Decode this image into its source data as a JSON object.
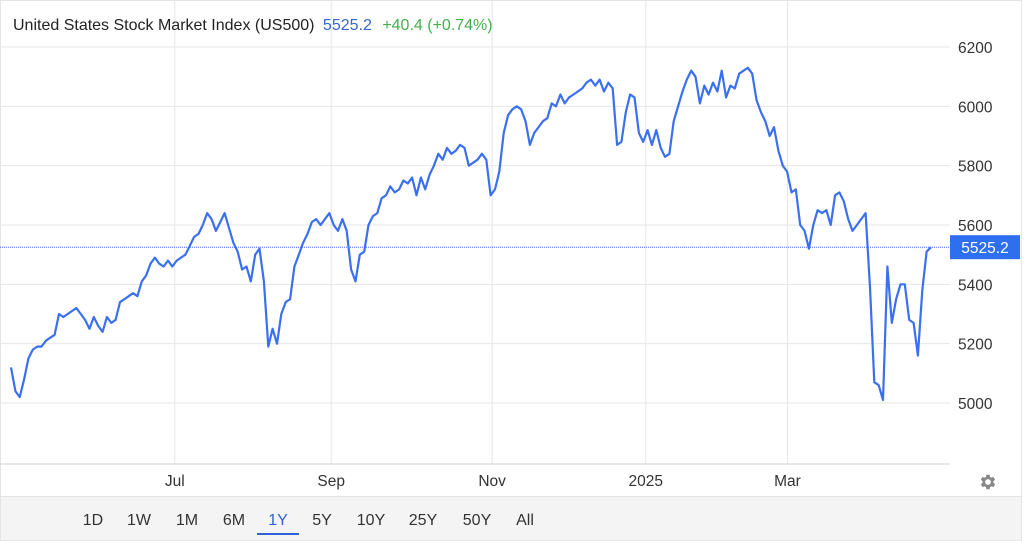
{
  "header": {
    "title": "United States Stock Market Index (US500)",
    "price": "5525.2",
    "change": "+40.4 (+0.74%)"
  },
  "range_buttons": [
    "1D",
    "1W",
    "1M",
    "6M",
    "1Y",
    "5Y",
    "10Y",
    "25Y",
    "50Y",
    "All"
  ],
  "active_range": "1Y",
  "colors": {
    "line": "#3a6ff0",
    "price": "#3568c8",
    "change_positive": "#43b049",
    "active": "#2e62d6",
    "grid": "#e6e6e6"
  },
  "icons": {
    "settings": "gear-icon"
  },
  "chart_data": {
    "type": "line",
    "title": "United States Stock Market Index (US500)",
    "x_tick_labels": [
      "Jul",
      "Sep",
      "Nov",
      "2025",
      "Mar"
    ],
    "y_ticks": [
      5000,
      5200,
      5400,
      5600,
      5800,
      6000,
      6200
    ],
    "ylim": [
      4800,
      6300
    ],
    "grid": true,
    "last_value": 5525.2,
    "last_value_label": "5525.2",
    "series": [
      {
        "values": [
          5120,
          5040,
          5020,
          5080,
          5150,
          5180,
          5190,
          5190,
          5210,
          5220,
          5230,
          5300,
          5290,
          5300,
          5310,
          5320,
          5300,
          5280,
          5250,
          5290,
          5260,
          5240,
          5290,
          5270,
          5280,
          5340,
          5350,
          5360,
          5370,
          5360,
          5410,
          5430,
          5470,
          5490,
          5470,
          5460,
          5480,
          5460,
          5480,
          5490,
          5500,
          5530,
          5560,
          5570,
          5600,
          5640,
          5620,
          5580,
          5610,
          5640,
          5590,
          5540,
          5510,
          5450,
          5460,
          5410,
          5500,
          5520,
          5410,
          5190,
          5250,
          5200,
          5300,
          5340,
          5350,
          5460,
          5500,
          5540,
          5570,
          5610,
          5620,
          5600,
          5620,
          5640,
          5600,
          5580,
          5620,
          5580,
          5450,
          5410,
          5500,
          5510,
          5600,
          5630,
          5640,
          5690,
          5700,
          5730,
          5710,
          5720,
          5750,
          5740,
          5760,
          5700,
          5760,
          5720,
          5770,
          5800,
          5840,
          5820,
          5860,
          5840,
          5850,
          5870,
          5860,
          5800,
          5810,
          5820,
          5840,
          5820,
          5700,
          5720,
          5780,
          5910,
          5970,
          5990,
          6000,
          5990,
          5950,
          5870,
          5910,
          5930,
          5950,
          5960,
          6010,
          6000,
          6040,
          6010,
          6030,
          6040,
          6050,
          6060,
          6080,
          6090,
          6070,
          6090,
          6050,
          6080,
          6060,
          5870,
          5880,
          5980,
          6040,
          6030,
          5910,
          5880,
          5920,
          5870,
          5920,
          5860,
          5830,
          5840,
          5950,
          6000,
          6050,
          6090,
          6120,
          6100,
          6010,
          6070,
          6040,
          6080,
          6050,
          6120,
          6030,
          6070,
          6060,
          6110,
          6120,
          6130,
          6110,
          6020,
          5980,
          5950,
          5900,
          5930,
          5850,
          5800,
          5780,
          5710,
          5720,
          5600,
          5580,
          5520,
          5600,
          5650,
          5640,
          5650,
          5600,
          5700,
          5710,
          5680,
          5620,
          5580,
          5600,
          5620,
          5640,
          5390,
          5070,
          5060,
          5010,
          5460,
          5270,
          5350,
          5400,
          5400,
          5280,
          5270,
          5160,
          5380,
          5510,
          5525.2
        ]
      }
    ]
  }
}
